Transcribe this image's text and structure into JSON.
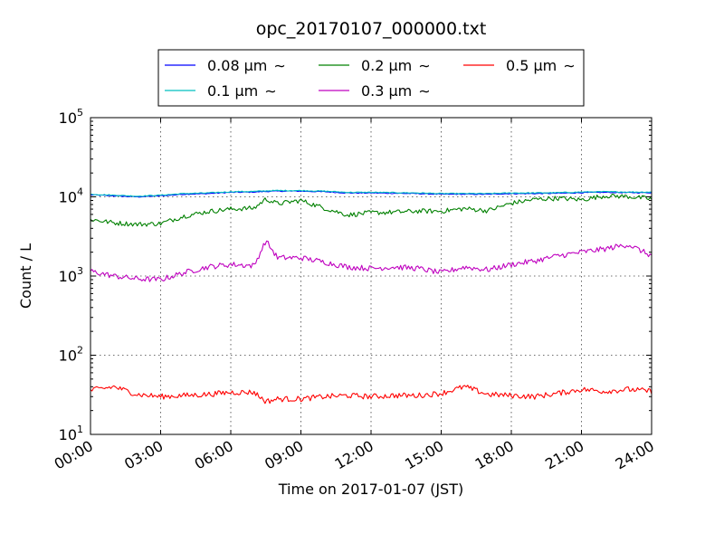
{
  "chart_data": {
    "type": "line",
    "title": "opc_20170107_000000.txt",
    "xlabel": "Time on 2017-01-07 (JST)",
    "ylabel": "Count / L",
    "yscale": "log",
    "xlim": [
      "2017-01-07 00:00",
      "2017-01-08 00:00"
    ],
    "ylim": [
      10,
      100000
    ],
    "grid": true,
    "legend_position": "top-center",
    "x_tick_labels": [
      "00:00",
      "03:00",
      "06:00",
      "09:00",
      "12:00",
      "15:00",
      "18:00",
      "21:00",
      "24:00"
    ],
    "y_tick_labels": [
      {
        "base": "10",
        "exp": "1"
      },
      {
        "base": "10",
        "exp": "2"
      },
      {
        "base": "10",
        "exp": "3"
      },
      {
        "base": "10",
        "exp": "4"
      },
      {
        "base": "10",
        "exp": "5"
      }
    ],
    "x": [
      "00:00",
      "01:00",
      "02:00",
      "03:00",
      "04:00",
      "05:00",
      "06:00",
      "07:00",
      "07:30",
      "08:00",
      "09:00",
      "10:00",
      "11:00",
      "12:00",
      "13:00",
      "14:00",
      "15:00",
      "16:00",
      "17:00",
      "18:00",
      "19:00",
      "20:00",
      "21:00",
      "22:00",
      "23:00",
      "24:00"
    ],
    "series": [
      {
        "name": "0.08",
        "unit": "μm",
        "suffix": "∼",
        "color": "#0000ff",
        "values": [
          10600,
          10300,
          10000,
          10300,
          10800,
          11000,
          11400,
          11500,
          11700,
          11800,
          11800,
          11600,
          11200,
          11200,
          11100,
          11000,
          10800,
          10800,
          10800,
          11000,
          11000,
          11100,
          11300,
          11400,
          11300,
          11300
        ]
      },
      {
        "name": "0.1",
        "unit": "μm",
        "suffix": "∼",
        "color": "#00bfbf",
        "values": [
          10800,
          10500,
          10200,
          10500,
          11000,
          11200,
          11600,
          11700,
          11900,
          12000,
          12000,
          11800,
          11400,
          11400,
          11300,
          11200,
          11000,
          11000,
          11000,
          11200,
          11200,
          11300,
          11500,
          11600,
          11500,
          11500
        ]
      },
      {
        "name": "0.2",
        "unit": "μm",
        "suffix": "∼",
        "color": "#008000",
        "values": [
          5200,
          4700,
          4500,
          4600,
          5700,
          6500,
          7000,
          7200,
          9400,
          8200,
          9000,
          7200,
          5900,
          6300,
          6400,
          6600,
          6600,
          7100,
          6700,
          8300,
          9300,
          9600,
          9200,
          10300,
          10100,
          9400
        ]
      },
      {
        "name": "0.3",
        "unit": "μm",
        "suffix": "∼",
        "color": "#bf00bf",
        "values": [
          1150,
          1000,
          920,
          900,
          1100,
          1300,
          1400,
          1350,
          2800,
          1700,
          1700,
          1500,
          1300,
          1250,
          1300,
          1250,
          1100,
          1300,
          1200,
          1400,
          1550,
          1800,
          2000,
          2200,
          2500,
          1800
        ]
      },
      {
        "name": "0.5",
        "unit": "μm",
        "suffix": "∼",
        "color": "#ff0000",
        "values": [
          36,
          40,
          32,
          30,
          31,
          32,
          34,
          34,
          26,
          28,
          28,
          30,
          31,
          30,
          31,
          31,
          33,
          40,
          32,
          31,
          30,
          33,
          37,
          35,
          37,
          35
        ]
      }
    ]
  }
}
